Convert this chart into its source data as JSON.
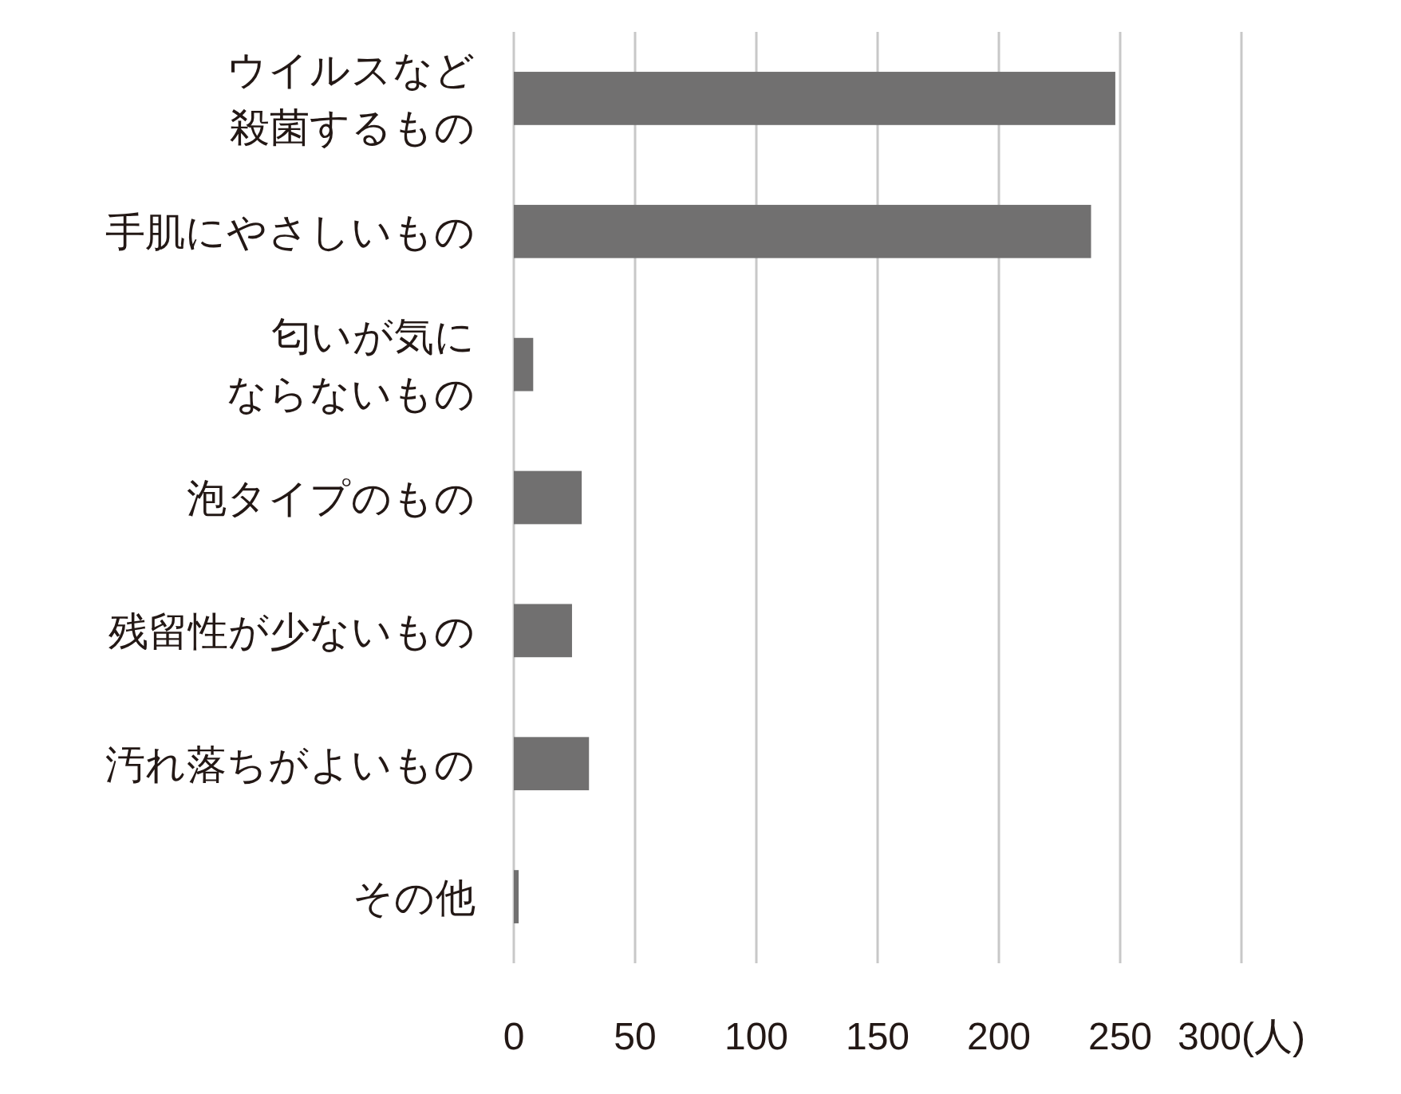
{
  "chart_data": {
    "type": "bar",
    "orientation": "horizontal",
    "categories": [
      "ウイルスなど殺菌するもの",
      "手肌にやさしいもの",
      "匂いが気にならないもの",
      "泡タイプのもの",
      "残留性が少ないもの",
      "汚れ落ちがよいもの",
      "その他"
    ],
    "values": [
      248,
      238,
      8,
      28,
      24,
      31,
      2
    ],
    "color": "#717070",
    "xlim": [
      0,
      300
    ],
    "xticks": [
      0,
      50,
      100,
      150,
      200,
      250,
      {
        "value": 300,
        "label": "300(人)"
      }
    ],
    "grid": "x"
  }
}
